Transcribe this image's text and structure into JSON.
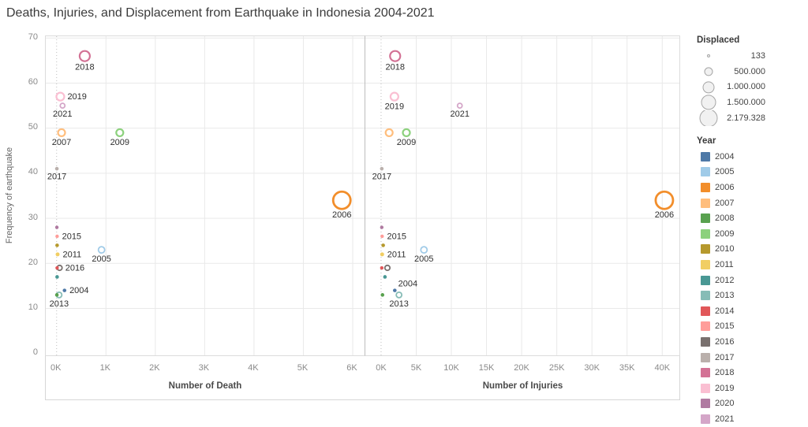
{
  "chart_data": {
    "type": "scatter",
    "title": "Deaths, Injuries, and Displacement from Earthquake in Indonesia 2004-2021",
    "ylabel": "Frequency of earthquake",
    "y_ticks": [
      0,
      10,
      20,
      30,
      40,
      50,
      60,
      70
    ],
    "ylim": [
      -0.4,
      70.4
    ],
    "grid": "on",
    "panels": [
      {
        "xlabel": "Number of Death",
        "field": "deaths",
        "xlim": [
          -220,
          6240
        ],
        "ticks": [
          {
            "label": "0K",
            "v": 0
          },
          {
            "label": "1K",
            "v": 1000
          },
          {
            "label": "2K",
            "v": 2000
          },
          {
            "label": "3K",
            "v": 3000
          },
          {
            "label": "4K",
            "v": 4000
          },
          {
            "label": "5K",
            "v": 5000
          },
          {
            "label": "6K",
            "v": 6000
          }
        ]
      },
      {
        "xlabel": "Number of Injuries",
        "field": "injuries",
        "xlim": [
          -2240,
          42440
        ],
        "ticks": [
          {
            "label": "0K",
            "v": 0
          },
          {
            "label": "5K",
            "v": 5000
          },
          {
            "label": "10K",
            "v": 10000
          },
          {
            "label": "15K",
            "v": 15000
          },
          {
            "label": "20K",
            "v": 20000
          },
          {
            "label": "25K",
            "v": 25000
          },
          {
            "label": "30K",
            "v": 30000
          },
          {
            "label": "35K",
            "v": 35000
          },
          {
            "label": "40K",
            "v": 40000
          }
        ]
      }
    ],
    "points": [
      {
        "year": "2004",
        "deaths": 160,
        "injuries": 1950,
        "frequency": 14,
        "r": 2.3,
        "label_left": "right",
        "label_right": "above-right"
      },
      {
        "year": "2005",
        "deaths": 910,
        "injuries": 6100,
        "frequency": 23,
        "r": 4,
        "label_left": "below",
        "label_right": "below"
      },
      {
        "year": "2006",
        "deaths": 5780,
        "injuries": 40300,
        "frequency": 34,
        "r": 11,
        "label_left": "below",
        "label_right": "below"
      },
      {
        "year": "2007",
        "deaths": 100,
        "injuries": 1150,
        "frequency": 49,
        "r": 4.5,
        "label_left": "below",
        "label_right": ""
      },
      {
        "year": "2008",
        "deaths": 5,
        "injuries": 200,
        "frequency": 13,
        "r": 2.3,
        "label_left": "",
        "label_right": ""
      },
      {
        "year": "2009",
        "deaths": 1280,
        "injuries": 3600,
        "frequency": 49,
        "r": 4.5,
        "label_left": "below",
        "label_right": "below"
      },
      {
        "year": "2010",
        "deaths": 10,
        "injuries": 300,
        "frequency": 24,
        "r": 2.3,
        "label_left": "",
        "label_right": ""
      },
      {
        "year": "2011",
        "deaths": 20,
        "injuries": 150,
        "frequency": 22,
        "r": 2.5,
        "label_left": "right",
        "label_right": "right"
      },
      {
        "year": "2012",
        "deaths": 10,
        "injuries": 550,
        "frequency": 17,
        "r": 2.3,
        "label_left": "",
        "label_right": ""
      },
      {
        "year": "2013",
        "deaths": 50,
        "injuries": 2550,
        "frequency": 13,
        "r": 3.5,
        "label_left": "below",
        "label_right": "below"
      },
      {
        "year": "2014",
        "deaths": 10,
        "injuries": 100,
        "frequency": 19,
        "r": 2.2,
        "label_left": "",
        "label_right": ""
      },
      {
        "year": "2015",
        "deaths": 10,
        "injuries": 150,
        "frequency": 26,
        "r": 2.2,
        "label_left": "right",
        "label_right": "right"
      },
      {
        "year": "2016",
        "deaths": 60,
        "injuries": 900,
        "frequency": 19,
        "r": 3.2,
        "label_left": "right",
        "label_right": ""
      },
      {
        "year": "2017",
        "deaths": 5,
        "injuries": 100,
        "frequency": 41,
        "r": 2.3,
        "label_left": "below",
        "label_right": "below"
      },
      {
        "year": "2018",
        "deaths": 570,
        "injuries": 2000,
        "frequency": 66,
        "r": 6.5,
        "label_left": "below",
        "label_right": "below"
      },
      {
        "year": "2019",
        "deaths": 75,
        "injuries": 1900,
        "frequency": 57,
        "r": 5,
        "label_left": "right",
        "label_right": "below"
      },
      {
        "year": "2020",
        "deaths": 5,
        "injuries": 100,
        "frequency": 28,
        "r": 2.2,
        "label_left": "",
        "label_right": ""
      },
      {
        "year": "2021",
        "deaths": 120,
        "injuries": 11200,
        "frequency": 55,
        "r": 3,
        "label_left": "below",
        "label_right": "below"
      }
    ]
  },
  "legend": {
    "size": {
      "title": "Displaced",
      "items": [
        {
          "label": "133",
          "r": 1.5
        },
        {
          "label": "500.000",
          "r": 5
        },
        {
          "label": "1.000.000",
          "r": 7
        },
        {
          "label": "1.500.000",
          "r": 9
        },
        {
          "label": "2.179.328",
          "r": 11
        }
      ]
    },
    "year": {
      "title": "Year",
      "items": [
        {
          "year": "2004",
          "color": "#4e79a7"
        },
        {
          "year": "2005",
          "color": "#a0cbe8"
        },
        {
          "year": "2006",
          "color": "#f28e2b"
        },
        {
          "year": "2007",
          "color": "#ffbe7d"
        },
        {
          "year": "2008",
          "color": "#59a14f"
        },
        {
          "year": "2009",
          "color": "#8cd17d"
        },
        {
          "year": "2010",
          "color": "#b6992d"
        },
        {
          "year": "2011",
          "color": "#f1ce63"
        },
        {
          "year": "2012",
          "color": "#499894"
        },
        {
          "year": "2013",
          "color": "#86bcb6"
        },
        {
          "year": "2014",
          "color": "#e15759"
        },
        {
          "year": "2015",
          "color": "#ff9d9a"
        },
        {
          "year": "2016",
          "color": "#79706e"
        },
        {
          "year": "2017",
          "color": "#bab0ac"
        },
        {
          "year": "2018",
          "color": "#d37295"
        },
        {
          "year": "2019",
          "color": "#fabfd2"
        },
        {
          "year": "2020",
          "color": "#b07aa1"
        },
        {
          "year": "2021",
          "color": "#d4a6c8"
        }
      ]
    }
  },
  "style": {
    "gridline_color": "#e9e9e9",
    "zero_line_color": "#bdbdbd",
    "size_legend_stroke": "#a6a6a6",
    "size_legend_fill": "rgba(200,200,200,0.25)"
  }
}
